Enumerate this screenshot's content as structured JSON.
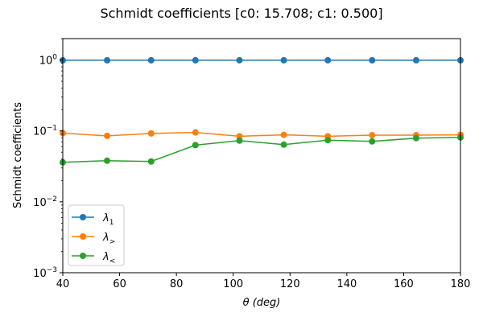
{
  "chart_data": {
    "type": "line",
    "title": "Schmidt coefficients [c0:  15.708; c1:  0.500]",
    "xlabel": "θ (deg)",
    "ylabel": "Schmidt coefficients",
    "yscale": "log",
    "xlim": [
      40,
      180
    ],
    "ylim": [
      0.001,
      2
    ],
    "x_ticks": [
      40,
      60,
      80,
      100,
      120,
      140,
      160,
      180
    ],
    "y_ticks": [
      {
        "value": 0.001,
        "base": "10",
        "exp": "−3"
      },
      {
        "value": 0.01,
        "base": "10",
        "exp": "−2"
      },
      {
        "value": 0.1,
        "base": "10",
        "exp": "−1"
      },
      {
        "value": 1,
        "base": "10",
        "exp": "0"
      }
    ],
    "legend_position": "lower-left",
    "grid": false,
    "x": [
      40,
      55.6,
      71.1,
      86.7,
      102.2,
      117.8,
      133.3,
      148.9,
      164.4,
      180
    ],
    "series": [
      {
        "name": "λ",
        "sub": "1",
        "color": "#1f77b4",
        "values": [
          0.99,
          0.99,
          0.99,
          0.99,
          0.99,
          0.99,
          0.99,
          0.99,
          0.99,
          0.99
        ]
      },
      {
        "name": "λ",
        "sub": ">",
        "color": "#ff7f0e",
        "values": [
          0.093,
          0.085,
          0.092,
          0.095,
          0.084,
          0.088,
          0.084,
          0.087,
          0.087,
          0.088
        ]
      },
      {
        "name": "λ",
        "sub": "<",
        "color": "#2ca02c",
        "values": [
          0.036,
          0.038,
          0.037,
          0.063,
          0.073,
          0.064,
          0.074,
          0.071,
          0.079,
          0.081
        ]
      }
    ]
  }
}
